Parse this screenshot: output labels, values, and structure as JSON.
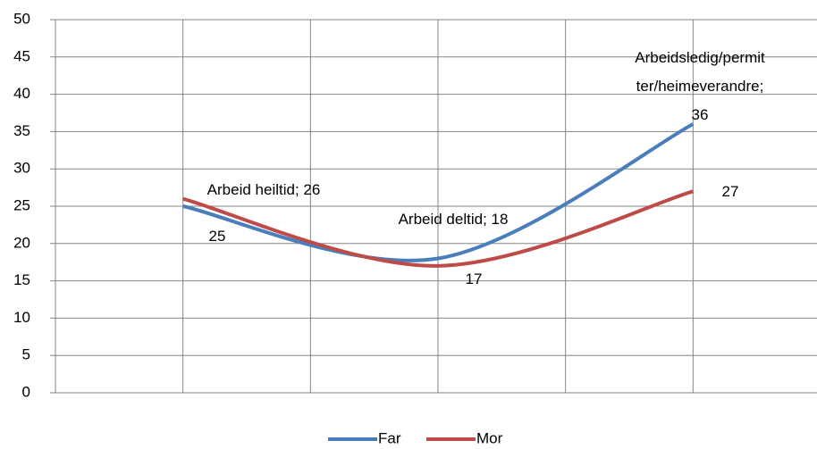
{
  "chart_data": {
    "type": "line",
    "series": [
      {
        "name": "Far",
        "color": "#4a7ebb",
        "values": [
          25,
          18,
          36
        ],
        "value_labels": [
          "25",
          "Arbeid deltid; 18",
          "Arbeidsledig/permitter/heimeverandre; 36"
        ]
      },
      {
        "name": "Mor",
        "color": "#be4b48",
        "values": [
          26,
          17,
          27
        ],
        "value_labels": [
          "Arbeid heiltid; 26",
          "17",
          "27"
        ]
      }
    ],
    "ylim": [
      0,
      50
    ],
    "yticks": [
      0,
      5,
      10,
      15,
      20,
      25,
      30,
      35,
      40,
      45,
      50
    ],
    "grid": true,
    "legend": "bottom"
  }
}
